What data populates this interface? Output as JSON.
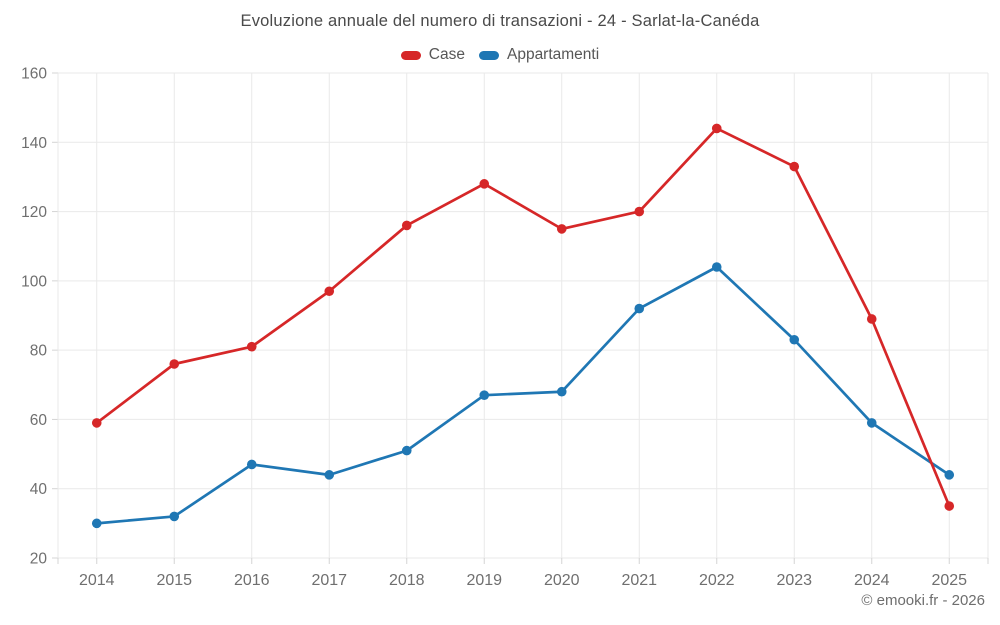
{
  "title": "Evoluzione annuale del numero di transazioni - 24 - Sarlat-la-Canéda",
  "footer": "© emooki.fr - 2026",
  "colors": {
    "case_red": "#d62728",
    "appartamenti_blue": "#1f77b4",
    "gridline": "#e9e9e9",
    "tick_mark": "#d4d4d4",
    "axis_label": "#6f6f6f",
    "title_text": "#4a4a4a",
    "legend_text": "#575757",
    "footer_text": "#6e6e6e",
    "background": "#ffffff"
  },
  "chart_data": {
    "type": "line",
    "title": "Evoluzione annuale del numero di transazioni - 24 - Sarlat-la-Canéda",
    "categories": [
      "2014",
      "2015",
      "2016",
      "2017",
      "2018",
      "2019",
      "2020",
      "2021",
      "2022",
      "2023",
      "2024",
      "2025"
    ],
    "series": [
      {
        "name": "Case",
        "color": "#d62728",
        "values": [
          59,
          76,
          81,
          97,
          116,
          128,
          115,
          120,
          144,
          133,
          89,
          35
        ]
      },
      {
        "name": "Appartamenti",
        "color": "#1f77b4",
        "values": [
          30,
          32,
          47,
          44,
          51,
          67,
          68,
          92,
          104,
          83,
          59,
          44
        ]
      }
    ],
    "xlabel": "",
    "ylabel": "",
    "ylim": [
      20,
      160
    ],
    "ytick_step": 20,
    "yticks": [
      20,
      40,
      60,
      80,
      100,
      120,
      140,
      160
    ],
    "grid": true,
    "legend_position": "top",
    "marker": "circle",
    "annotation": "© emooki.fr - 2026"
  }
}
